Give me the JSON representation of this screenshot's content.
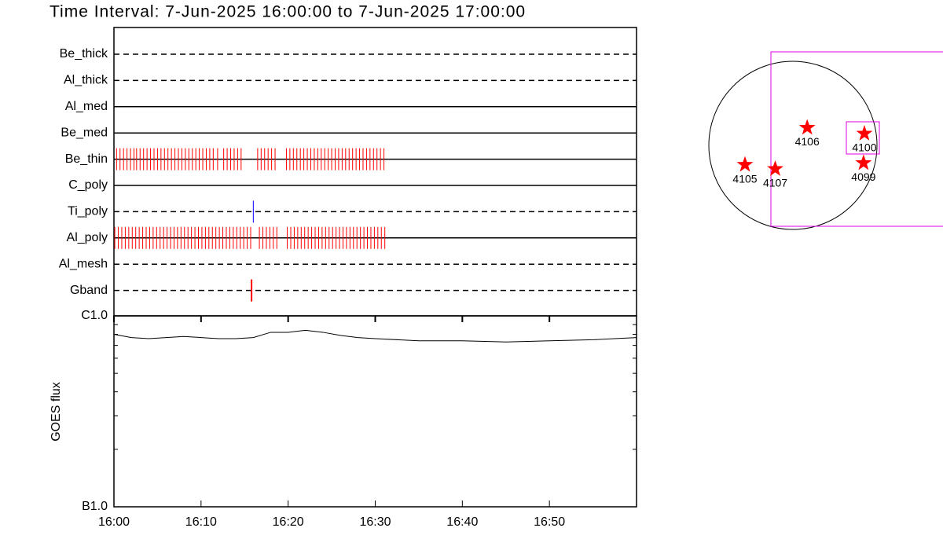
{
  "chart_data": [
    {
      "type": "timeline",
      "title": "Time Interval:  7-Jun-2025 16:00:00 to  7-Jun-2025 17:00:00",
      "xlim": [
        0,
        60
      ],
      "series": [
        {
          "name": "Be_thick",
          "style": "dashed",
          "color": "#ff0000",
          "values": []
        },
        {
          "name": "Al_thick",
          "style": "dashed",
          "color": "#ff0000",
          "values": []
        },
        {
          "name": "Al_med",
          "style": "solid",
          "color": "#ff0000",
          "values": []
        },
        {
          "name": "Be_med",
          "style": "solid",
          "color": "#ff0000",
          "values": []
        },
        {
          "name": "Be_thin",
          "style": "solid",
          "color": "#ff0000",
          "values": [
            0.3,
            0.7,
            1.1,
            1.5,
            1.9,
            2.3,
            2.6,
            3.0,
            3.4,
            3.8,
            4.2,
            4.6,
            5.0,
            5.4,
            5.8,
            6.2,
            6.6,
            7.0,
            7.4,
            7.8,
            8.2,
            8.6,
            9.0,
            9.4,
            9.8,
            10.2,
            10.6,
            11.0,
            11.4,
            11.9,
            12.6,
            13.0,
            13.4,
            13.8,
            14.2,
            14.6,
            16.5,
            16.9,
            17.3,
            17.7,
            18.1,
            18.5,
            19.8,
            20.2,
            20.6,
            21.0,
            21.4,
            21.8,
            22.2,
            22.6,
            23.0,
            23.4,
            23.8,
            24.2,
            24.6,
            25.0,
            25.4,
            25.8,
            26.2,
            26.6,
            27.0,
            27.4,
            27.8,
            28.2,
            28.6,
            29.0,
            29.4,
            29.8,
            30.2,
            30.6,
            31.0
          ]
        },
        {
          "name": "C_poly",
          "style": "solid",
          "color": "#ff0000",
          "values": []
        },
        {
          "name": "Ti_poly",
          "style": "dashed",
          "color": "#0000ff",
          "values": [
            16.0
          ]
        },
        {
          "name": "Al_poly",
          "style": "solid",
          "color": "#ff0000",
          "values": [
            0.1,
            0.5,
            0.9,
            1.3,
            1.7,
            2.1,
            2.5,
            2.9,
            3.3,
            3.7,
            4.1,
            4.5,
            4.9,
            5.3,
            5.7,
            6.1,
            6.5,
            6.9,
            7.3,
            7.7,
            8.1,
            8.5,
            8.9,
            9.3,
            9.7,
            10.1,
            10.5,
            10.9,
            11.3,
            11.7,
            12.1,
            12.5,
            12.9,
            13.3,
            13.7,
            14.1,
            14.5,
            14.9,
            15.3,
            15.7,
            16.7,
            17.1,
            17.5,
            17.9,
            18.3,
            18.7,
            19.9,
            20.3,
            20.7,
            21.1,
            21.5,
            21.9,
            22.3,
            22.7,
            23.1,
            23.5,
            23.9,
            24.3,
            24.7,
            25.1,
            25.5,
            25.9,
            26.3,
            26.7,
            27.1,
            27.5,
            27.9,
            28.3,
            28.7,
            29.1,
            29.5,
            29.9,
            30.3,
            30.7,
            31.1
          ]
        },
        {
          "name": "Al_mesh",
          "style": "dashed",
          "color": "#ff0000",
          "values": []
        },
        {
          "name": "Gband",
          "style": "dashed",
          "color": "#ff0000",
          "values": [
            15.8
          ]
        }
      ]
    },
    {
      "type": "line",
      "y_label": "GOES flux",
      "log_y": true,
      "color": "#000000",
      "xlim": [
        0,
        60
      ],
      "xticks": [
        {
          "value": 0,
          "label": "16:00"
        },
        {
          "value": 10,
          "label": "16:10"
        },
        {
          "value": 20,
          "label": "16:20"
        },
        {
          "value": 30,
          "label": "16:30"
        },
        {
          "value": 40,
          "label": "16:40"
        },
        {
          "value": 50,
          "label": "16:50"
        }
      ],
      "ylim": [
        1e-07,
        1e-06
      ],
      "yticks": [
        {
          "value": 1e-07,
          "label": "B1.0"
        },
        {
          "value": 1e-06,
          "label": "C1.0"
        }
      ],
      "yminor": [
        2e-07,
        3e-07,
        4e-07,
        5e-07,
        6e-07,
        7e-07,
        8e-07,
        9e-07
      ],
      "x": [
        0,
        2,
        4,
        6,
        8,
        10,
        12,
        14,
        16,
        18,
        20,
        22,
        24,
        26,
        28,
        30,
        35,
        40,
        45,
        50,
        55,
        60
      ],
      "values": [
        8e-07,
        7.7e-07,
        7.6e-07,
        7.7e-07,
        7.8e-07,
        7.7e-07,
        7.6e-07,
        7.6e-07,
        7.7e-07,
        8.2e-07,
        8.2e-07,
        8.4e-07,
        8.2e-07,
        7.9e-07,
        7.7e-07,
        7.6e-07,
        7.4e-07,
        7.4e-07,
        7.3e-07,
        7.4e-07,
        7.5e-07,
        7.7e-07
      ]
    },
    {
      "type": "map",
      "color": "#ff0000",
      "labels": [
        "4105",
        "4107",
        "4106",
        "4100",
        "4099"
      ],
      "x": [
        -0.57,
        -0.21,
        0.17,
        0.85,
        0.84
      ],
      "y": [
        -0.23,
        -0.28,
        0.21,
        0.14,
        -0.21
      ]
    }
  ]
}
